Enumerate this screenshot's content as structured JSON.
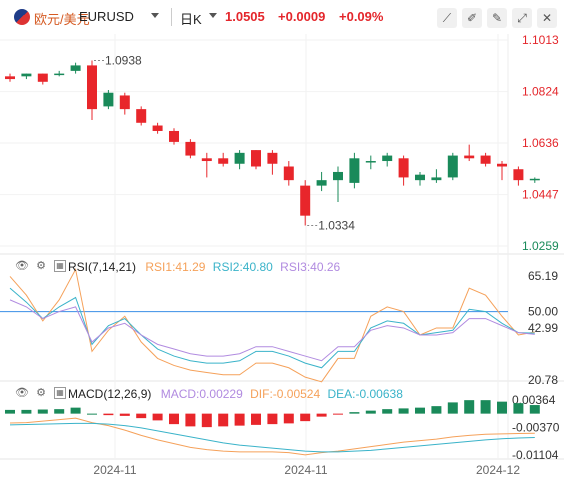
{
  "header": {
    "symbol_cn": "欧元/美元",
    "symbol_code": "EURUSD",
    "period": "日K",
    "price": "1.0505",
    "change": "+0.0009",
    "change_pct": "+0.09%",
    "toolbar_icons": [
      "draw-line-icon",
      "draw-tool-icon",
      "pen-icon",
      "expand-icon",
      "close-icon"
    ]
  },
  "colors": {
    "up": "#1a8a5a",
    "down": "#e8262b",
    "rsi1": "#f5a15a",
    "rsi2": "#3ab3c9",
    "rsi3": "#b18be0",
    "dif": "#f5a15a",
    "dea": "#3ab3c9",
    "axis_text": "#e4262b"
  },
  "chart_data": [
    {
      "type": "candlestick",
      "y_ticks": [
        "1.1013",
        "1.0824",
        "1.0636",
        "1.0447",
        "1.0259"
      ],
      "ylim": [
        1.0259,
        1.1013
      ],
      "x_ticks": [
        "2024-11",
        "2024-11",
        "2024-12"
      ],
      "annotations": [
        {
          "label": "1.0938",
          "kind": "high"
        },
        {
          "label": "1.0334",
          "kind": "low"
        }
      ],
      "candles": [
        {
          "o": 1.088,
          "h": 1.089,
          "l": 1.086,
          "c": 1.087
        },
        {
          "o": 1.088,
          "h": 1.089,
          "l": 1.087,
          "c": 1.089
        },
        {
          "o": 1.089,
          "h": 1.089,
          "l": 1.085,
          "c": 1.086
        },
        {
          "o": 1.089,
          "h": 1.09,
          "l": 1.088,
          "c": 1.089
        },
        {
          "o": 1.09,
          "h": 1.093,
          "l": 1.089,
          "c": 1.092
        },
        {
          "o": 1.092,
          "h": 1.0938,
          "l": 1.072,
          "c": 1.076
        },
        {
          "o": 1.077,
          "h": 1.083,
          "l": 1.076,
          "c": 1.082
        },
        {
          "o": 1.081,
          "h": 1.082,
          "l": 1.074,
          "c": 1.076
        },
        {
          "o": 1.076,
          "h": 1.077,
          "l": 1.07,
          "c": 1.071
        },
        {
          "o": 1.07,
          "h": 1.071,
          "l": 1.067,
          "c": 1.068
        },
        {
          "o": 1.068,
          "h": 1.069,
          "l": 1.063,
          "c": 1.064
        },
        {
          "o": 1.064,
          "h": 1.065,
          "l": 1.058,
          "c": 1.059
        },
        {
          "o": 1.058,
          "h": 1.06,
          "l": 1.051,
          "c": 1.057
        },
        {
          "o": 1.058,
          "h": 1.06,
          "l": 1.055,
          "c": 1.056
        },
        {
          "o": 1.056,
          "h": 1.061,
          "l": 1.054,
          "c": 1.06
        },
        {
          "o": 1.061,
          "h": 1.061,
          "l": 1.054,
          "c": 1.055
        },
        {
          "o": 1.06,
          "h": 1.061,
          "l": 1.052,
          "c": 1.056
        },
        {
          "o": 1.055,
          "h": 1.057,
          "l": 1.048,
          "c": 1.05
        },
        {
          "o": 1.048,
          "h": 1.05,
          "l": 1.0334,
          "c": 1.037
        },
        {
          "o": 1.048,
          "h": 1.053,
          "l": 1.046,
          "c": 1.05
        },
        {
          "o": 1.05,
          "h": 1.055,
          "l": 1.042,
          "c": 1.053
        },
        {
          "o": 1.049,
          "h": 1.06,
          "l": 1.047,
          "c": 1.058
        },
        {
          "o": 1.057,
          "h": 1.059,
          "l": 1.054,
          "c": 1.057
        },
        {
          "o": 1.057,
          "h": 1.06,
          "l": 1.055,
          "c": 1.059
        },
        {
          "o": 1.058,
          "h": 1.059,
          "l": 1.048,
          "c": 1.051
        },
        {
          "o": 1.05,
          "h": 1.053,
          "l": 1.048,
          "c": 1.052
        },
        {
          "o": 1.05,
          "h": 1.054,
          "l": 1.049,
          "c": 1.051
        },
        {
          "o": 1.051,
          "h": 1.06,
          "l": 1.05,
          "c": 1.059
        },
        {
          "o": 1.059,
          "h": 1.063,
          "l": 1.057,
          "c": 1.058
        },
        {
          "o": 1.059,
          "h": 1.06,
          "l": 1.055,
          "c": 1.056
        },
        {
          "o": 1.056,
          "h": 1.057,
          "l": 1.05,
          "c": 1.055
        },
        {
          "o": 1.054,
          "h": 1.055,
          "l": 1.048,
          "c": 1.05
        },
        {
          "o": 1.05,
          "h": 1.051,
          "l": 1.049,
          "c": 1.0505
        }
      ]
    },
    {
      "type": "line",
      "indicator": "RSI(7,14,21)",
      "legend": [
        {
          "label": "RSI1:41.29",
          "color": "#f5a15a"
        },
        {
          "label": "RSI2:40.80",
          "color": "#3ab3c9"
        },
        {
          "label": "RSI3:40.26",
          "color": "#b18be0"
        }
      ],
      "y_ticks": [
        "65.19",
        "50.00",
        "42.99",
        "20.78"
      ],
      "ylim": [
        20.78,
        65.19
      ],
      "ref_line": 50.0,
      "series": [
        {
          "name": "RSI1",
          "values": [
            65,
            57,
            46,
            55,
            68,
            33,
            42,
            48,
            37,
            30,
            27,
            25,
            24,
            23,
            23,
            28,
            28,
            26,
            22,
            20,
            30,
            30,
            48,
            52,
            50,
            40,
            43,
            43,
            60,
            57,
            48,
            40,
            41.29
          ]
        },
        {
          "name": "RSI2",
          "values": [
            60,
            54,
            47,
            52,
            56,
            36,
            44,
            47,
            40,
            34,
            31,
            29,
            28,
            28,
            29,
            33,
            33,
            31,
            28,
            26,
            33,
            33,
            43,
            46,
            45,
            40,
            41,
            42,
            51,
            50,
            45,
            41,
            40.8
          ]
        },
        {
          "name": "RSI3",
          "values": [
            55,
            52,
            47,
            50,
            52,
            37,
            43,
            45,
            40,
            36,
            34,
            32,
            31,
            31,
            32,
            35,
            35,
            33,
            31,
            29,
            35,
            35,
            42,
            44,
            43,
            40,
            40,
            41,
            47,
            47,
            44,
            41,
            40.26
          ]
        }
      ]
    },
    {
      "type": "bar",
      "indicator": "MACD(12,26,9)",
      "legend": [
        {
          "label": "MACD:0.00229",
          "color": "#b18be0"
        },
        {
          "label": "DIF:-0.00524",
          "color": "#f5a15a"
        },
        {
          "label": "DEA:-0.00638",
          "color": "#3ab3c9"
        }
      ],
      "y_ticks": [
        "0.00364",
        "-0.00370",
        "-0.01104"
      ],
      "ylim": [
        -0.01104,
        0.00364
      ],
      "macd": [
        0.001,
        0.001,
        0.0011,
        0.0012,
        0.0016,
        0.0,
        -0.0004,
        -0.0006,
        -0.0012,
        -0.0018,
        -0.0028,
        -0.0034,
        -0.0036,
        -0.0034,
        -0.0032,
        -0.003,
        -0.0028,
        -0.0026,
        -0.002,
        -0.0008,
        -0.0002,
        0.0004,
        0.0008,
        0.0012,
        0.0014,
        0.0016,
        0.002,
        0.003,
        0.0036,
        0.0036,
        0.0032,
        0.0028,
        0.00229
      ],
      "dif": [
        -0.0025,
        -0.0024,
        -0.002,
        -0.0016,
        -0.0012,
        -0.0024,
        -0.0032,
        -0.0044,
        -0.0058,
        -0.007,
        -0.008,
        -0.009,
        -0.0096,
        -0.01,
        -0.0102,
        -0.0102,
        -0.0102,
        -0.0104,
        -0.011,
        -0.0104,
        -0.01,
        -0.0094,
        -0.0088,
        -0.0082,
        -0.0076,
        -0.0072,
        -0.0068,
        -0.0062,
        -0.0058,
        -0.0055,
        -0.0054,
        -0.0053,
        -0.00524
      ],
      "dea": [
        -0.003,
        -0.0029,
        -0.0028,
        -0.0027,
        -0.0026,
        -0.0026,
        -0.0028,
        -0.0032,
        -0.0038,
        -0.0046,
        -0.0054,
        -0.0062,
        -0.007,
        -0.0078,
        -0.0084,
        -0.0088,
        -0.0092,
        -0.0096,
        -0.01,
        -0.0102,
        -0.0102,
        -0.01,
        -0.0098,
        -0.0094,
        -0.009,
        -0.0086,
        -0.0082,
        -0.0078,
        -0.0074,
        -0.007,
        -0.0067,
        -0.0065,
        -0.00638
      ]
    }
  ]
}
